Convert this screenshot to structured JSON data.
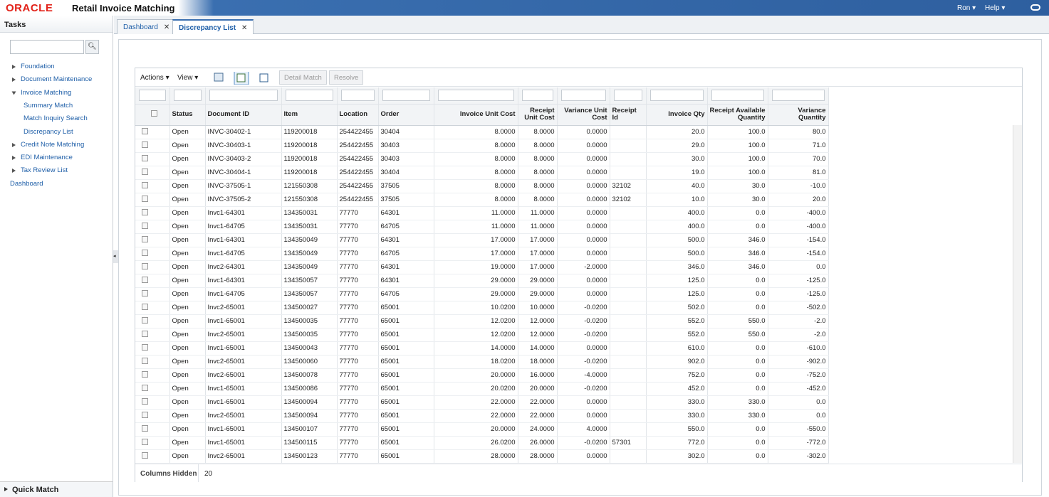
{
  "header": {
    "brand": "ORACLE",
    "app_title": "Retail Invoice Matching",
    "user": "Ron",
    "help": "Help"
  },
  "sidebar": {
    "title": "Tasks",
    "items": [
      {
        "label": "Foundation"
      },
      {
        "label": "Document Maintenance"
      },
      {
        "label": "Invoice Matching",
        "children": [
          "Summary Match",
          "Match Inquiry Search",
          "Discrepancy List"
        ]
      },
      {
        "label": "Credit Note Matching"
      },
      {
        "label": "EDI Maintenance"
      },
      {
        "label": "Tax Review List"
      }
    ],
    "dashboard": "Dashboard",
    "footer": "Quick Match"
  },
  "tabs": [
    "Dashboard",
    "Discrepancy List"
  ],
  "toolbar": {
    "actions": "Actions",
    "view": "View",
    "buttons": [
      "Detail Match",
      "Resolve"
    ]
  },
  "table": {
    "columns": [
      "Status",
      "Document ID",
      "Item",
      "Location",
      "Order",
      "Invoice Unit Cost",
      "Receipt Unit Cost",
      "Variance Unit Cost",
      "Receipt Id",
      "Invoice Qty",
      "Receipt Available Quantity",
      "Variance Quantity"
    ],
    "rows": [
      [
        "Open",
        "INVC-30402-1",
        "119200018",
        "254422455",
        "30404",
        "8.0000",
        "8.0000",
        "0.0000",
        null,
        "20.0",
        "100.0",
        "80.0"
      ],
      [
        "Open",
        "INVC-30403-1",
        "119200018",
        "254422455",
        "30403",
        "8.0000",
        "8.0000",
        "0.0000",
        null,
        "29.0",
        "100.0",
        "71.0"
      ],
      [
        "Open",
        "INVC-30403-2",
        "119200018",
        "254422455",
        "30403",
        "8.0000",
        "8.0000",
        "0.0000",
        null,
        "30.0",
        "100.0",
        "70.0"
      ],
      [
        "Open",
        "INVC-30404-1",
        "119200018",
        "254422455",
        "30404",
        "8.0000",
        "8.0000",
        "0.0000",
        null,
        "19.0",
        "100.0",
        "81.0"
      ],
      [
        "Open",
        "INVC-37505-1",
        "121550308",
        "254422455",
        "37505",
        "8.0000",
        "8.0000",
        "0.0000",
        "32102",
        "40.0",
        "30.0",
        "-10.0"
      ],
      [
        "Open",
        "INVC-37505-2",
        "121550308",
        "254422455",
        "37505",
        "8.0000",
        "8.0000",
        "0.0000",
        "32102",
        "10.0",
        "30.0",
        "20.0"
      ],
      [
        "Open",
        "Invc1-64301",
        "134350031",
        "77770",
        "64301",
        "11.0000",
        "11.0000",
        "0.0000",
        null,
        "400.0",
        "0.0",
        "-400.0"
      ],
      [
        "Open",
        "Invc1-64705",
        "134350031",
        "77770",
        "64705",
        "11.0000",
        "11.0000",
        "0.0000",
        null,
        "400.0",
        "0.0",
        "-400.0"
      ],
      [
        "Open",
        "Invc1-64301",
        "134350049",
        "77770",
        "64301",
        "17.0000",
        "17.0000",
        "0.0000",
        null,
        "500.0",
        "346.0",
        "-154.0"
      ],
      [
        "Open",
        "Invc1-64705",
        "134350049",
        "77770",
        "64705",
        "17.0000",
        "17.0000",
        "0.0000",
        null,
        "500.0",
        "346.0",
        "-154.0"
      ],
      [
        "Open",
        "Invc2-64301",
        "134350049",
        "77770",
        "64301",
        "19.0000",
        "17.0000",
        "-2.0000",
        null,
        "346.0",
        "346.0",
        "0.0"
      ],
      [
        "Open",
        "Invc1-64301",
        "134350057",
        "77770",
        "64301",
        "29.0000",
        "29.0000",
        "0.0000",
        null,
        "125.0",
        "0.0",
        "-125.0"
      ],
      [
        "Open",
        "Invc1-64705",
        "134350057",
        "77770",
        "64705",
        "29.0000",
        "29.0000",
        "0.0000",
        null,
        "125.0",
        "0.0",
        "-125.0"
      ],
      [
        "Open",
        "Invc2-65001",
        "134500027",
        "77770",
        "65001",
        "10.0200",
        "10.0000",
        "-0.0200",
        null,
        "502.0",
        "0.0",
        "-502.0"
      ],
      [
        "Open",
        "Invc1-65001",
        "134500035",
        "77770",
        "65001",
        "12.0200",
        "12.0000",
        "-0.0200",
        null,
        "552.0",
        "550.0",
        "-2.0"
      ],
      [
        "Open",
        "Invc2-65001",
        "134500035",
        "77770",
        "65001",
        "12.0200",
        "12.0000",
        "-0.0200",
        null,
        "552.0",
        "550.0",
        "-2.0"
      ],
      [
        "Open",
        "Invc1-65001",
        "134500043",
        "77770",
        "65001",
        "14.0000",
        "14.0000",
        "0.0000",
        null,
        "610.0",
        "0.0",
        "-610.0"
      ],
      [
        "Open",
        "Invc2-65001",
        "134500060",
        "77770",
        "65001",
        "18.0200",
        "18.0000",
        "-0.0200",
        null,
        "902.0",
        "0.0",
        "-902.0"
      ],
      [
        "Open",
        "Invc2-65001",
        "134500078",
        "77770",
        "65001",
        "20.0000",
        "16.0000",
        "-4.0000",
        null,
        "752.0",
        "0.0",
        "-752.0"
      ],
      [
        "Open",
        "Invc1-65001",
        "134500086",
        "77770",
        "65001",
        "20.0200",
        "20.0000",
        "-0.0200",
        null,
        "452.0",
        "0.0",
        "-452.0"
      ],
      [
        "Open",
        "Invc1-65001",
        "134500094",
        "77770",
        "65001",
        "22.0000",
        "22.0000",
        "0.0000",
        null,
        "330.0",
        "330.0",
        "0.0"
      ],
      [
        "Open",
        "Invc2-65001",
        "134500094",
        "77770",
        "65001",
        "22.0000",
        "22.0000",
        "0.0000",
        null,
        "330.0",
        "330.0",
        "0.0"
      ],
      [
        "Open",
        "Invc1-65001",
        "134500107",
        "77770",
        "65001",
        "20.0000",
        "24.0000",
        "4.0000",
        null,
        "550.0",
        "0.0",
        "-550.0"
      ],
      [
        "Open",
        "Invc1-65001",
        "134500115",
        "77770",
        "65001",
        "26.0200",
        "26.0000",
        "-0.0200",
        "57301",
        "772.0",
        "0.0",
        "-772.0"
      ],
      [
        "Open",
        "Invc2-65001",
        "134500123",
        "77770",
        "65001",
        "28.0000",
        "28.0000",
        "0.0000",
        null,
        "302.0",
        "0.0",
        "-302.0"
      ]
    ],
    "footer_label": "Columns Hidden",
    "footer_value": "20"
  }
}
